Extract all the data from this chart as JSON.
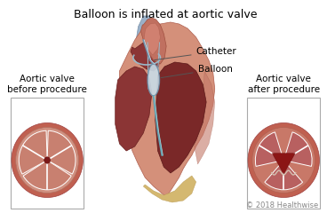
{
  "title": "Balloon is inflated at aortic valve",
  "title_fontsize": 9,
  "title_color": "#000000",
  "bg_color": "#ffffff",
  "left_label_line1": "Aortic valve",
  "left_label_line2": "before procedure",
  "right_label_line1": "Aortic valve",
  "right_label_line2": "after procedure",
  "catheter_label": "Catheter",
  "balloon_label": "Balloon",
  "copyright": "© 2018 Healthwise",
  "copyright_fontsize": 6,
  "label_fontsize": 7.5,
  "heart_flesh": "#d4907a",
  "heart_muscle": "#c47868",
  "heart_dark_chamber": "#7a3030",
  "heart_mid_chamber": "#9a4040",
  "aorta_blue": "#9ab0c8",
  "balloon_fill": "#c8dce8",
  "balloon_edge": "#7090a8",
  "catheter_teal": "#60a0b0",
  "valve_rim": "#c06858",
  "valve_leaflet": "#c88878",
  "valve_open_dark": "#8b1a1a",
  "valve_white_line": "#ffffff",
  "box_edge": "#999999",
  "arrow_color": "#555555"
}
